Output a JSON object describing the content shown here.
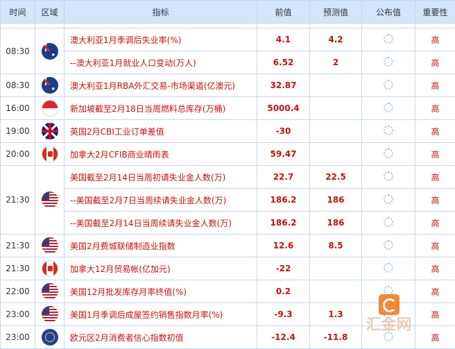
{
  "header": [
    "时间",
    "区域",
    "指标",
    "前值",
    "预测值",
    "公布值",
    "重要性"
  ],
  "groups": [
    {
      "time": "08:30",
      "flag": "australia",
      "rows": [
        {
          "indicator": "澳大利亚1月季调后失业率(%)",
          "prev": "4.1",
          "forecast": "4.2",
          "actual": "",
          "importance": "高"
        },
        {
          "indicator": "--澳大利亚1月就业人口变动(万人)",
          "prev": "6.52",
          "forecast": "2",
          "actual": "",
          "importance": "高"
        }
      ]
    },
    {
      "time": "08:30",
      "flag": "australia",
      "rows": [
        {
          "indicator": "澳大利亚1月RBA外汇交易-市场渠道(亿澳元)",
          "prev": "32.87",
          "forecast": "",
          "actual": "",
          "importance": "高"
        }
      ]
    },
    {
      "time": "16:00",
      "flag": "singapore",
      "rows": [
        {
          "indicator": "新加坡截至2月18日当周燃料总库存(万桶)",
          "prev": "5000.4",
          "forecast": "",
          "actual": "",
          "importance": "高"
        }
      ]
    },
    {
      "time": "19:00",
      "flag": "uk",
      "rows": [
        {
          "indicator": "英国2月CBI工业订单差值",
          "prev": "-30",
          "forecast": "",
          "actual": "",
          "importance": "高"
        }
      ]
    },
    {
      "time": "20:00",
      "flag": "canada",
      "rows": [
        {
          "indicator": "加拿大2月CFIB商业晴雨表",
          "prev": "59.47",
          "forecast": "",
          "actual": "",
          "importance": "高"
        }
      ]
    },
    {
      "time": "21:30",
      "flag": "us",
      "rows": [
        {
          "indicator": "美国截至2月14日当周初请失业金人数(万)",
          "prev": "22.7",
          "forecast": "22.5",
          "actual": "",
          "importance": "高"
        },
        {
          "indicator": "--美国截至2月7日当周续请失业金人数(万)",
          "prev": "186.2",
          "forecast": "186",
          "actual": "",
          "importance": "高"
        },
        {
          "indicator": "--美国截至2月14日当周续请失业金人数(万)",
          "prev": "186.2",
          "forecast": "186",
          "actual": "",
          "importance": "高"
        }
      ]
    },
    {
      "time": "21:30",
      "flag": "us",
      "rows": [
        {
          "indicator": "美国2月费城联储制造业指数",
          "prev": "12.6",
          "forecast": "8.5",
          "actual": "",
          "importance": "高"
        }
      ]
    },
    {
      "time": "21:30",
      "flag": "canada",
      "rows": [
        {
          "indicator": "加拿大12月贸易帐(亿加元)",
          "prev": "-22",
          "forecast": "",
          "actual": "",
          "importance": "高"
        }
      ]
    },
    {
      "time": "22:00",
      "flag": "us",
      "rows": [
        {
          "indicator": "美国12月批发库存月率终值(%)",
          "prev": "0.2",
          "forecast": "",
          "actual": "",
          "importance": "高"
        }
      ]
    },
    {
      "time": "23:00",
      "flag": "us",
      "rows": [
        {
          "indicator": "美国1月季调后成屋签约销售指数月率(%)",
          "prev": "-9.3",
          "forecast": "1.3",
          "actual": "",
          "importance": "高"
        }
      ]
    },
    {
      "time": "23:00",
      "flag": "eurozone",
      "rows": [
        {
          "indicator": "欧元区2月消费者信心指数初值",
          "prev": "-12.4",
          "forecast": "-11.8",
          "actual": "",
          "importance": "高"
        }
      ]
    }
  ],
  "watermark": {
    "text": "汇金网",
    "url": "www.gold678.com"
  }
}
